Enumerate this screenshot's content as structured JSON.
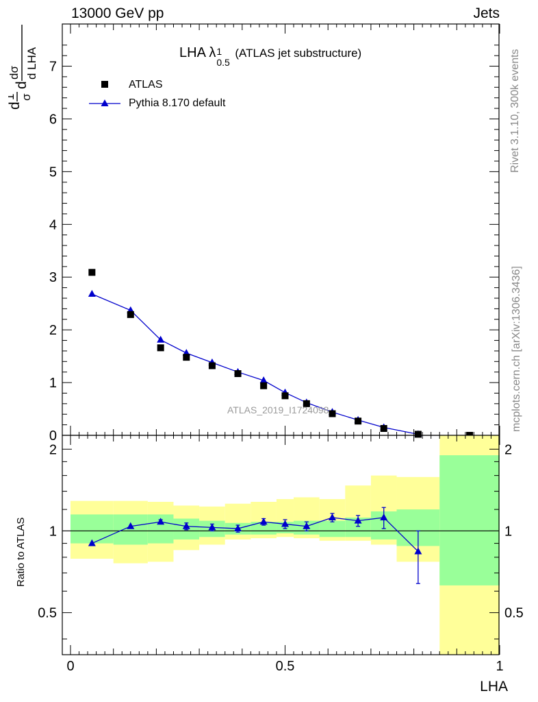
{
  "header": {
    "left": "13000 GeV pp",
    "right": "Jets"
  },
  "side_labels": {
    "top": "Rivet 3.1.10,  300k events",
    "bottom": "mcplots.cern.ch [arXiv:1306.3436]"
  },
  "chart_data": [
    {
      "type": "scatter",
      "title_main": "LHA ",
      "title_symbol": "λ",
      "title_sup": "1",
      "title_sub": "0.5",
      "title_suffix": "(ATLAS jet substructure)",
      "ylabel": "1/σ dσ/d LHA",
      "xlim": [
        0,
        1
      ],
      "ylim": [
        0,
        7.8
      ],
      "yticks": [
        "0",
        "1",
        "2",
        "3",
        "4",
        "5",
        "6",
        "7"
      ],
      "watermark": "ATLAS_2019_I1724098",
      "legend_position": "top-left",
      "series": [
        {
          "name": "ATLAS",
          "marker": "square",
          "color": "#000000",
          "x": [
            0.05,
            0.14,
            0.21,
            0.27,
            0.33,
            0.39,
            0.45,
            0.5,
            0.55,
            0.61,
            0.67,
            0.73,
            0.81,
            0.93
          ],
          "y": [
            3.09,
            2.29,
            1.66,
            1.48,
            1.32,
            1.17,
            0.94,
            0.75,
            0.6,
            0.41,
            0.27,
            0.13,
            0.02,
            0.0
          ]
        },
        {
          "name": "Pythia 8.170 default",
          "marker": "triangle",
          "color": "#0000cc",
          "x": [
            0.05,
            0.14,
            0.21,
            0.27,
            0.33,
            0.39,
            0.45,
            0.5,
            0.55,
            0.61,
            0.67,
            0.73,
            0.81
          ],
          "y": [
            2.68,
            2.37,
            1.81,
            1.56,
            1.38,
            1.2,
            1.04,
            0.81,
            0.62,
            0.44,
            0.29,
            0.15,
            0.02
          ]
        }
      ]
    },
    {
      "type": "scatter",
      "ylabel": "Ratio to ATLAS",
      "xlabel": "LHA",
      "xlim": [
        0,
        1
      ],
      "ylim": [
        0.35,
        2.25
      ],
      "yscale": "log",
      "xticks": [
        "0",
        "0.5",
        "1"
      ],
      "yticks": [
        "0.5",
        "1",
        "2"
      ],
      "reference_line": 1,
      "bands": {
        "edges": [
          0,
          0.1,
          0.18,
          0.24,
          0.3,
          0.36,
          0.42,
          0.48,
          0.52,
          0.58,
          0.64,
          0.7,
          0.76,
          0.86,
          1.0
        ],
        "stat_lo": [
          0.9,
          0.89,
          0.9,
          0.93,
          0.95,
          0.97,
          0.97,
          0.98,
          0.97,
          0.95,
          0.95,
          0.93,
          0.88,
          0.63
        ],
        "stat_hi": [
          1.15,
          1.15,
          1.15,
          1.11,
          1.09,
          1.07,
          1.08,
          1.08,
          1.09,
          1.09,
          1.12,
          1.18,
          1.2,
          1.9
        ],
        "total_lo": [
          0.79,
          0.76,
          0.77,
          0.85,
          0.89,
          0.93,
          0.94,
          0.95,
          0.94,
          0.92,
          0.92,
          0.89,
          0.77,
          0.33
        ],
        "total_hi": [
          1.29,
          1.29,
          1.28,
          1.24,
          1.23,
          1.26,
          1.28,
          1.31,
          1.33,
          1.31,
          1.47,
          1.6,
          1.58,
          2.4
        ]
      },
      "series": [
        {
          "name": "Pythia 8.170 default",
          "color": "#0000cc",
          "x": [
            0.05,
            0.14,
            0.21,
            0.27,
            0.33,
            0.39,
            0.45,
            0.5,
            0.55,
            0.61,
            0.67,
            0.73,
            0.81
          ],
          "y": [
            0.9,
            1.04,
            1.08,
            1.04,
            1.03,
            1.02,
            1.08,
            1.06,
            1.04,
            1.12,
            1.09,
            1.12,
            0.84
          ],
          "err_lo": [
            0,
            0,
            0.02,
            0.03,
            0.03,
            0.03,
            0.03,
            0.04,
            0.04,
            0.04,
            0.05,
            0.1,
            0.2
          ],
          "err_hi": [
            0,
            0,
            0.02,
            0.03,
            0.03,
            0.03,
            0.03,
            0.04,
            0.04,
            0.04,
            0.05,
            0.1,
            0.16
          ]
        }
      ]
    }
  ],
  "colors": {
    "stat_band": "#99ff99",
    "total_band": "#ffff99",
    "reference": "#000000"
  }
}
